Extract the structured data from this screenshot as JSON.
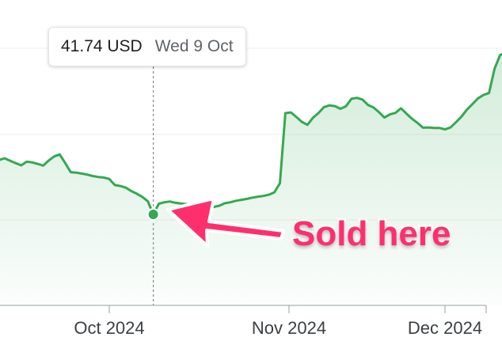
{
  "chart_data": {
    "type": "area",
    "title": "",
    "xlabel": "",
    "ylabel": "",
    "x_tick_labels": [
      "Oct 2024",
      "Nov 2024",
      "Dec 2024"
    ],
    "grid": true,
    "colors": {
      "line": "#34a853",
      "area": "#34a853",
      "annotation": "#ff2f6e"
    },
    "tooltip": {
      "value": "41.74 USD",
      "date": "Wed 9 Oct"
    },
    "annotation": {
      "text": "Sold here",
      "target_date": "2024-10-09"
    },
    "series": [
      {
        "x": [
          "2024-09-07",
          "2024-09-08",
          "2024-09-09",
          "2024-09-10",
          "2024-09-11",
          "2024-09-12",
          "2024-09-13",
          "2024-09-14",
          "2024-09-15",
          "2024-09-16",
          "2024-09-17",
          "2024-09-18",
          "2024-09-19",
          "2024-09-20",
          "2024-09-21",
          "2024-09-22",
          "2024-09-23",
          "2024-09-24",
          "2024-09-25",
          "2024-09-26",
          "2024-09-27",
          "2024-09-28",
          "2024-09-29",
          "2024-09-30",
          "2024-10-01",
          "2024-10-02",
          "2024-10-03",
          "2024-10-04",
          "2024-10-05",
          "2024-10-06",
          "2024-10-07",
          "2024-10-08",
          "2024-10-09",
          "2024-10-10",
          "2024-10-11",
          "2024-10-12",
          "2024-10-13",
          "2024-10-14",
          "2024-10-15",
          "2024-10-16",
          "2024-10-17",
          "2024-10-18",
          "2024-10-19",
          "2024-10-20",
          "2024-10-21",
          "2024-10-22",
          "2024-10-23",
          "2024-10-24",
          "2024-10-25",
          "2024-10-26",
          "2024-10-27",
          "2024-10-28",
          "2024-10-29",
          "2024-10-30",
          "2024-10-31",
          "2024-11-01",
          "2024-11-02",
          "2024-11-03",
          "2024-11-04",
          "2024-11-05",
          "2024-11-06",
          "2024-11-07",
          "2024-11-08",
          "2024-11-09",
          "2024-11-10",
          "2024-11-11",
          "2024-11-12",
          "2024-11-13",
          "2024-11-14",
          "2024-11-15",
          "2024-11-16",
          "2024-11-17",
          "2024-11-18",
          "2024-11-19",
          "2024-11-20",
          "2024-11-21",
          "2024-11-22",
          "2024-11-23",
          "2024-11-24",
          "2024-11-25",
          "2024-11-26",
          "2024-11-27",
          "2024-11-28",
          "2024-11-29",
          "2024-11-30",
          "2024-12-01",
          "2024-12-02",
          "2024-12-03",
          "2024-12-04",
          "2024-12-05",
          "2024-12-06",
          "2024-12-07",
          "2024-12-08",
          "2024-12-09",
          "2024-12-10",
          "2024-12-11",
          "2024-12-12"
        ],
        "y": [
          43.55,
          43.66,
          43.78,
          43.89,
          43.98,
          44.05,
          43.95,
          43.85,
          43.76,
          43.91,
          43.88,
          43.82,
          43.75,
          43.96,
          44.13,
          44.21,
          43.85,
          43.48,
          43.46,
          43.42,
          43.38,
          43.32,
          43.28,
          43.26,
          43.2,
          42.95,
          42.91,
          42.84,
          42.7,
          42.59,
          42.46,
          42.28,
          41.74,
          42.18,
          42.24,
          42.27,
          42.22,
          42.19,
          42.16,
          42.13,
          42.1,
          42.07,
          42.07,
          42.05,
          42.1,
          42.2,
          42.24,
          42.3,
          42.34,
          42.38,
          42.43,
          42.47,
          42.5,
          42.55,
          42.65,
          43.02,
          45.91,
          45.94,
          45.75,
          45.55,
          45.43,
          45.72,
          45.91,
          46.16,
          46.23,
          46.2,
          46.09,
          46.19,
          46.5,
          46.54,
          46.47,
          46.25,
          46.15,
          45.95,
          45.73,
          45.86,
          45.92,
          46.11,
          45.89,
          45.68,
          45.51,
          45.31,
          45.32,
          45.3,
          45.3,
          45.24,
          45.32,
          45.54,
          45.77,
          46.06,
          46.29,
          46.52,
          46.66,
          46.74,
          47.74,
          48.3,
          48.42
        ]
      }
    ]
  }
}
